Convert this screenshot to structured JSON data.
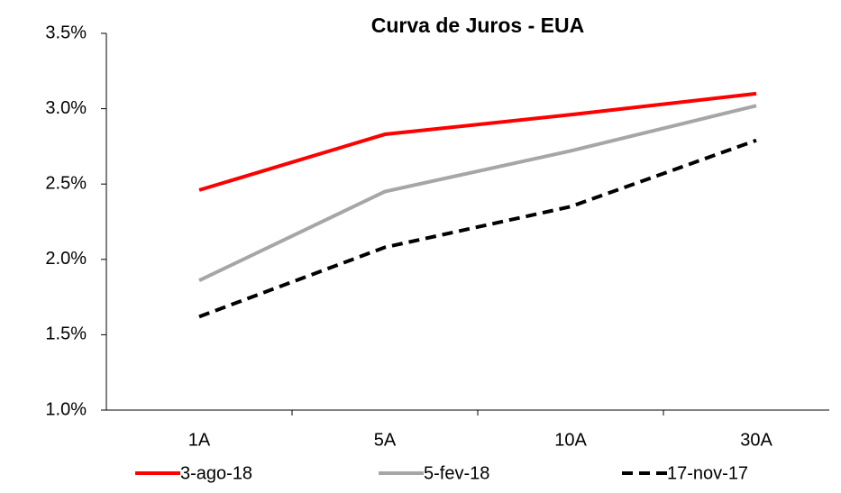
{
  "chart_data": {
    "type": "line",
    "title": "Curva de Juros - EUA",
    "categories": [
      "1A",
      "5A",
      "10A",
      "30A"
    ],
    "series": [
      {
        "name": "3-ago-18",
        "color": "#ff0000",
        "dash": "solid",
        "values": [
          2.46,
          2.83,
          2.96,
          3.1
        ]
      },
      {
        "name": "5-fev-18",
        "color": "#a6a6a6",
        "dash": "solid",
        "values": [
          1.86,
          2.45,
          2.72,
          3.02
        ]
      },
      {
        "name": "17-nov-17",
        "color": "#000000",
        "dash": "dashed",
        "values": [
          1.62,
          2.08,
          2.35,
          2.79
        ]
      }
    ],
    "ylim": [
      1.0,
      3.5
    ],
    "yticks": [
      {
        "value": 1.0,
        "label": "1.0%"
      },
      {
        "value": 1.5,
        "label": "1.5%"
      },
      {
        "value": 2.0,
        "label": "2.0%"
      },
      {
        "value": 2.5,
        "label": "2.5%"
      },
      {
        "value": 3.0,
        "label": "3.0%"
      },
      {
        "value": 3.5,
        "label": "3.5%"
      }
    ],
    "grid": false,
    "legend": "bottom"
  }
}
